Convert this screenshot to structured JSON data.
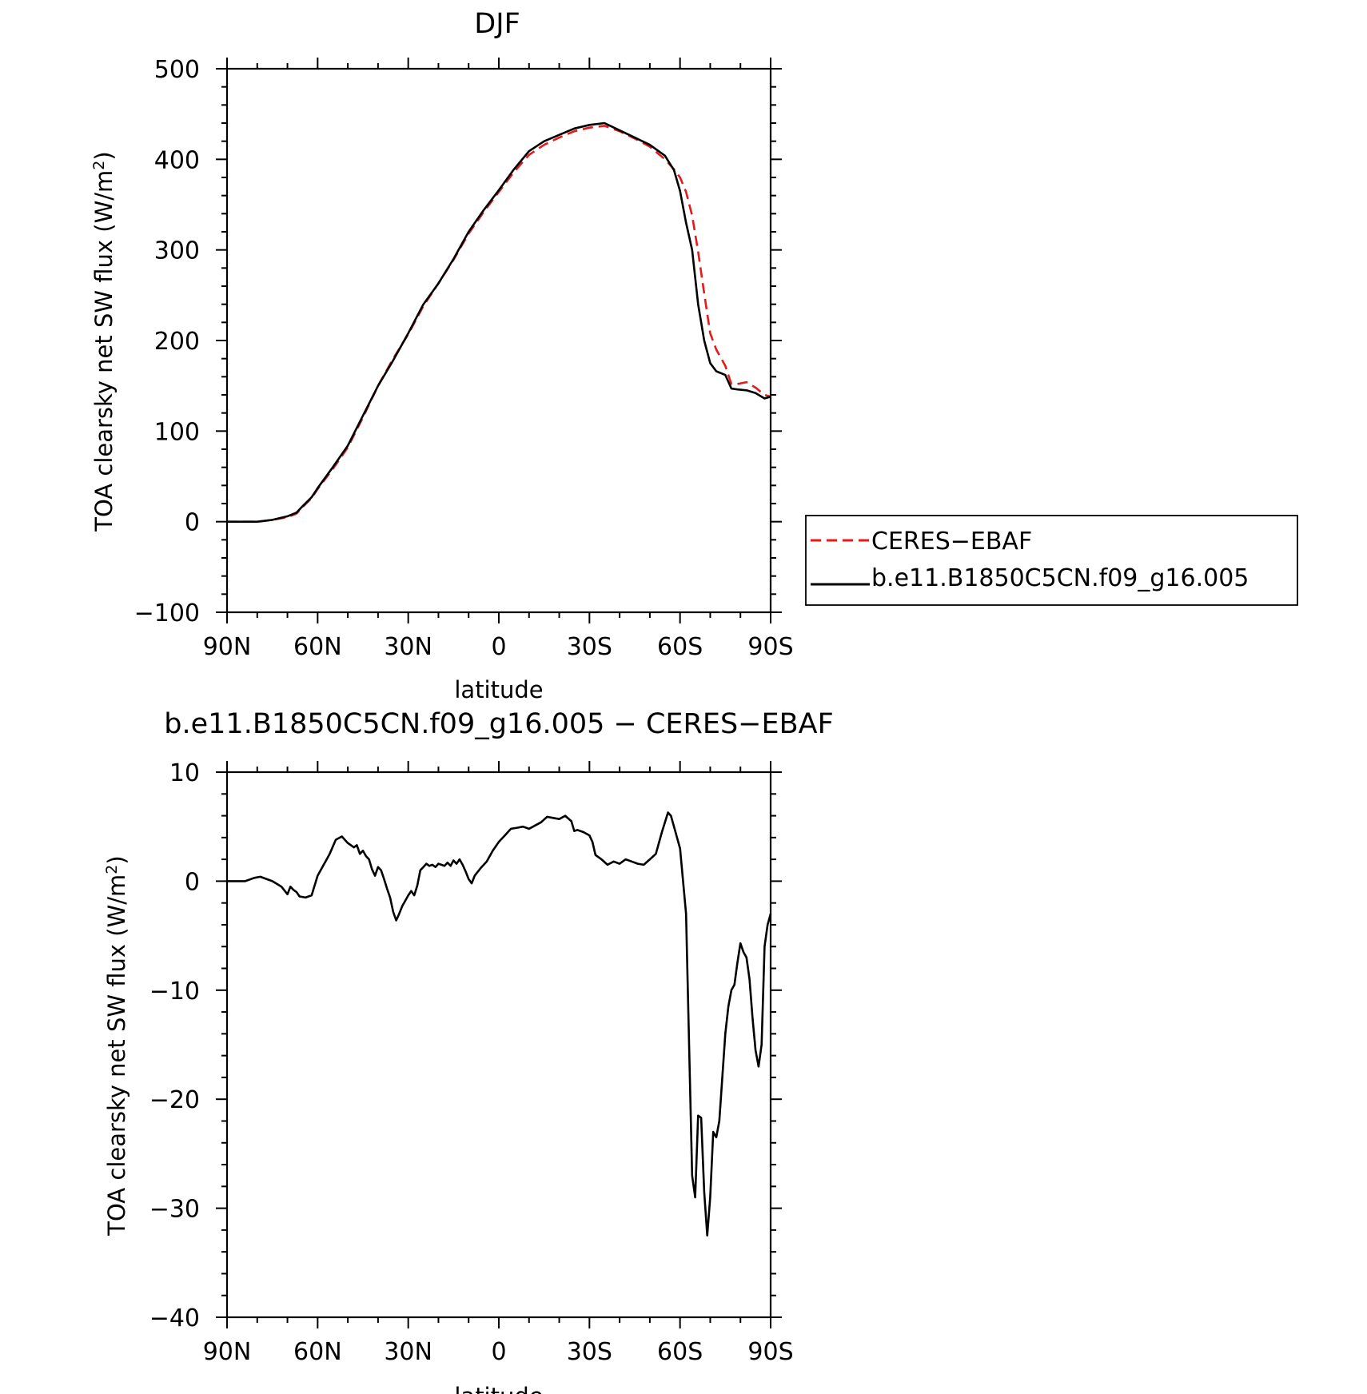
{
  "chart_data": [
    {
      "type": "line",
      "title": "DJF",
      "xlabel": "latitude",
      "ylabel": "TOA clearsky net SW flux (W/m²)",
      "ylabel_main": "TOA clearsky net SW flux (W/m",
      "ylabel_sup": "2",
      "ylabel_end": ")",
      "xlim": [
        90,
        -90
      ],
      "ylim": [
        -100,
        500
      ],
      "xticks": [
        90,
        60,
        30,
        0,
        -30,
        -60,
        -90
      ],
      "xtick_labels": [
        "90N",
        "60N",
        "30N",
        "0",
        "30S",
        "60S",
        "90S"
      ],
      "yticks": [
        -100,
        0,
        100,
        200,
        300,
        400,
        500
      ],
      "ytick_labels": [
        "−100",
        "0",
        "100",
        "200",
        "300",
        "400",
        "500"
      ],
      "legend_position": "right",
      "series": [
        {
          "name": "CERES−EBAF",
          "color": "#e41a1c",
          "dash": "dashed",
          "x": [
            90,
            85,
            80,
            75,
            70,
            67,
            65,
            62,
            60,
            55,
            50,
            45,
            40,
            35,
            30,
            25,
            20,
            15,
            10,
            5,
            0,
            -5,
            -10,
            -15,
            -20,
            -25,
            -30,
            -35,
            -40,
            -45,
            -50,
            -55,
            -58,
            -60,
            -62,
            -64,
            -66,
            -68,
            -70,
            -72,
            -75,
            -77,
            -79,
            -82,
            -85,
            -88,
            -90
          ],
          "y": [
            0,
            0,
            0,
            2,
            5,
            9,
            16,
            26,
            36,
            58,
            82,
            115,
            150,
            180,
            207,
            238,
            263,
            289,
            318,
            342,
            364,
            386,
            405,
            416,
            424,
            431,
            435,
            437,
            431,
            423,
            414,
            400,
            389,
            380,
            364,
            338,
            298,
            252,
            208,
            190,
            172,
            152,
            152,
            154,
            148,
            140,
            138
          ]
        },
        {
          "name": "b.e11.B1850C5CN.f09_g16.005",
          "color": "#000000",
          "dash": "solid",
          "x": [
            90,
            85,
            80,
            75,
            70,
            67,
            65,
            62,
            60,
            55,
            50,
            45,
            40,
            35,
            30,
            25,
            20,
            15,
            10,
            5,
            0,
            -5,
            -10,
            -15,
            -20,
            -25,
            -30,
            -35,
            -40,
            -45,
            -50,
            -55,
            -58,
            -60,
            -62,
            -64,
            -66,
            -68,
            -70,
            -72,
            -75,
            -77,
            -79,
            -82,
            -85,
            -88,
            -90
          ],
          "y": [
            0,
            0,
            0,
            2,
            6,
            10,
            17,
            27,
            37,
            60,
            84,
            117,
            150,
            178,
            208,
            240,
            263,
            290,
            320,
            344,
            366,
            389,
            409,
            420,
            427,
            434,
            438,
            440,
            432,
            424,
            416,
            404,
            388,
            365,
            330,
            300,
            240,
            200,
            175,
            166,
            162,
            147,
            146,
            145,
            142,
            136,
            138
          ]
        }
      ]
    },
    {
      "type": "line",
      "title": "b.e11.B1850C5CN.f09_g16.005 − CERES−EBAF",
      "xlabel": "latitude",
      "ylabel": "TOA clearsky net SW flux (W/m²)",
      "ylabel_main": "TOA clearsky net SW flux (W/m",
      "ylabel_sup": "2",
      "ylabel_end": ")",
      "xlim": [
        90,
        -90
      ],
      "ylim": [
        -40,
        10
      ],
      "xticks": [
        90,
        60,
        30,
        0,
        -30,
        -60,
        -90
      ],
      "xtick_labels": [
        "90N",
        "60N",
        "30N",
        "0",
        "30S",
        "60S",
        "90S"
      ],
      "yticks": [
        -40,
        -30,
        -20,
        -10,
        0,
        10
      ],
      "ytick_labels": [
        "−40",
        "−30",
        "−20",
        "−10",
        "0",
        "10"
      ],
      "series": [
        {
          "color": "#000000",
          "dash": "solid",
          "x": [
            90,
            84,
            81,
            79,
            75,
            72,
            70,
            69,
            68,
            67,
            66,
            64,
            62,
            60,
            58,
            57,
            56,
            54,
            52,
            50,
            48,
            47,
            46,
            45,
            44,
            43,
            42,
            41,
            40,
            39,
            38,
            37,
            36,
            35,
            34,
            33,
            32,
            31,
            30,
            29,
            28,
            27,
            26,
            25,
            24,
            23,
            22,
            21,
            20,
            19,
            18,
            17,
            16,
            15,
            14,
            13,
            12,
            11,
            10,
            9,
            8,
            6,
            4,
            2,
            0,
            -2,
            -4,
            -6,
            -8,
            -10,
            -12,
            -14,
            -16,
            -18,
            -20,
            -22,
            -24,
            -25,
            -26,
            -28,
            -30,
            -31,
            -32,
            -34,
            -36,
            -38,
            -40,
            -42,
            -44,
            -46,
            -48,
            -50,
            -52,
            -54,
            -56,
            -57,
            -58,
            -60,
            -62,
            -64,
            -65,
            -66,
            -67,
            -68,
            -69,
            -70,
            -71,
            -72,
            -73,
            -75,
            -76,
            -77,
            -78,
            -79,
            -80,
            -81,
            -82,
            -83,
            -84,
            -85,
            -86,
            -87,
            -88,
            -89,
            -90
          ],
          "x_note": "",
          "y": [
            0,
            0,
            0.3,
            0.4,
            0,
            -0.5,
            -1.2,
            -0.5,
            -0.8,
            -1.0,
            -1.4,
            -1.5,
            -1.3,
            0.5,
            1.5,
            2.0,
            2.5,
            3.8,
            4.1,
            3.5,
            3.1,
            3.3,
            2.5,
            2.8,
            2.3,
            2.0,
            1.1,
            0.5,
            1.3,
            1.0,
            0.2,
            -0.7,
            -1.5,
            -2.8,
            -3.6,
            -3.0,
            -2.3,
            -1.8,
            -1.3,
            -0.9,
            -1.3,
            -0.4,
            1.0,
            1.3,
            1.6,
            1.4,
            1.5,
            1.3,
            1.6,
            1.5,
            1.4,
            1.7,
            1.4,
            1.9,
            1.6,
            2.0,
            1.5,
            0.9,
            0.2,
            -0.2,
            0.5,
            1.2,
            1.8,
            2.8,
            3.6,
            4.2,
            4.8,
            4.9,
            5.0,
            4.8,
            5.1,
            5.4,
            5.9,
            5.8,
            5.7,
            6.0,
            5.5,
            4.6,
            4.7,
            4.5,
            4.2,
            3.6,
            2.4,
            2.0,
            1.5,
            1.8,
            1.6,
            2.0,
            1.8,
            1.6,
            1.5,
            2.0,
            2.5,
            4.5,
            6.3,
            6.0,
            5.0,
            3.0,
            -3.0,
            -27.0,
            -29.0,
            -21.5,
            -21.7,
            -28.5,
            -32.5,
            -29.0,
            -23.0,
            -23.5,
            -22.0,
            -14.0,
            -11.5,
            -10.0,
            -9.5,
            -7.5,
            -5.7,
            -6.5,
            -7.0,
            -9.0,
            -12.5,
            -15.5,
            -17.0,
            -15.0,
            -6.0,
            -4.0,
            -3.0
          ]
        }
      ]
    }
  ]
}
